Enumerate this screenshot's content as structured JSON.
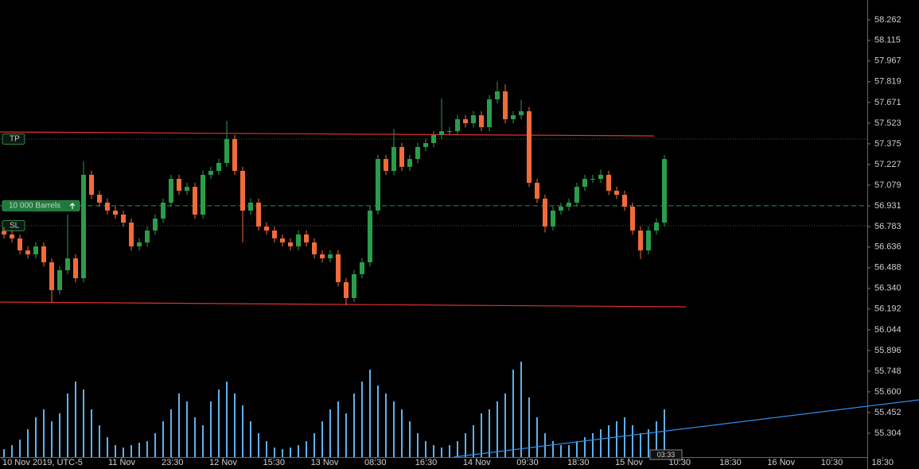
{
  "chart_data": {
    "type": "candlestick",
    "ylim": [
      55.133,
      58.404
    ],
    "yticks": [
      58.262,
      58.115,
      57.967,
      57.819,
      57.671,
      57.523,
      57.375,
      57.227,
      57.079,
      56.931,
      56.783,
      56.636,
      56.488,
      {
        "value": 56.34,
        "label": "56.340"
      },
      56.192,
      56.044,
      55.896,
      55.748,
      {
        "value": 55.6,
        "label": "55.600"
      },
      55.452,
      55.304
    ],
    "time_labels": [
      "10 Nov 2019, UTC-5",
      "11 Nov",
      "23:30",
      "12 Nov",
      "15:30",
      "13 Nov",
      "08:30",
      "16:30",
      "14 Nov",
      "09:30",
      "18:30",
      "15 Nov",
      "10:30",
      "18:30",
      "16 Nov",
      "10:30",
      "18:30"
    ],
    "up_color": "#2a9d4b",
    "down_color": "#f26b3a",
    "volume_color": "#5fb0ec",
    "open": [
      56.75,
      56.726,
      56.698,
      56.612,
      56.584,
      56.641,
      56.527,
      56.328,
      56.47,
      56.555,
      56.413,
      57.153,
      57.01,
      56.954,
      56.897,
      56.868,
      56.811,
      56.641,
      56.669,
      56.754,
      56.84,
      56.954,
      57.124,
      57.039,
      57.067,
      56.868,
      57.153,
      57.181,
      57.238,
      57.409,
      57.181,
      56.897,
      56.954,
      56.783,
      56.754,
      56.698,
      56.669,
      56.641,
      56.726,
      56.669,
      56.584,
      56.555,
      56.584,
      56.385,
      56.271,
      56.442,
      56.527,
      56.897,
      57.266,
      57.181,
      57.352,
      57.21,
      57.266,
      57.352,
      57.38,
      57.437,
      57.465,
      57.465,
      57.551,
      57.522,
      57.579,
      57.494,
      57.693,
      57.75,
      57.551,
      57.579,
      57.608,
      57.096,
      56.982,
      56.783,
      56.897,
      56.925,
      56.954,
      57.067,
      57.124,
      57.124,
      57.153,
      57.039,
      57.01,
      56.925,
      56.754,
      56.612,
      56.754,
      56.811
    ],
    "high": [
      56.78,
      56.756,
      56.728,
      56.642,
      56.671,
      56.671,
      56.557,
      56.5,
      56.87,
      56.585,
      57.25,
      57.183,
      57.04,
      56.984,
      56.927,
      56.898,
      56.841,
      56.699,
      56.784,
      56.87,
      56.984,
      57.154,
      57.154,
      57.097,
      57.097,
      57.183,
      57.211,
      57.268,
      57.54,
      57.439,
      57.211,
      56.984,
      56.984,
      56.813,
      56.784,
      56.728,
      56.699,
      56.756,
      56.756,
      56.699,
      56.614,
      56.614,
      56.614,
      56.415,
      56.472,
      56.557,
      56.927,
      57.296,
      57.296,
      57.48,
      57.382,
      57.296,
      57.382,
      57.41,
      57.467,
      57.7,
      57.495,
      57.581,
      57.581,
      57.609,
      57.609,
      57.723,
      57.82,
      57.8,
      57.609,
      57.69,
      57.638,
      57.126,
      57.012,
      56.927,
      56.955,
      56.984,
      57.097,
      57.154,
      57.154,
      57.19,
      57.183,
      57.069,
      57.04,
      56.955,
      56.784,
      56.784,
      56.841,
      57.296
    ],
    "low": [
      56.696,
      56.668,
      56.582,
      56.554,
      56.554,
      56.497,
      56.242,
      56.298,
      56.44,
      56.383,
      56.383,
      56.98,
      56.924,
      56.867,
      56.838,
      56.781,
      56.611,
      56.611,
      56.639,
      56.724,
      56.81,
      56.924,
      57.009,
      57.009,
      56.838,
      56.838,
      57.123,
      57.151,
      57.208,
      57.151,
      56.67,
      56.867,
      56.753,
      56.724,
      56.668,
      56.639,
      56.611,
      56.611,
      56.639,
      56.554,
      56.525,
      56.525,
      56.355,
      56.22,
      56.241,
      56.412,
      56.497,
      56.867,
      57.151,
      57.151,
      57.18,
      57.18,
      57.236,
      57.322,
      57.35,
      57.407,
      57.435,
      57.435,
      57.492,
      57.492,
      57.464,
      57.464,
      57.663,
      57.521,
      57.521,
      57.549,
      57.066,
      56.952,
      56.74,
      56.753,
      56.867,
      56.895,
      56.924,
      57.037,
      57.094,
      57.094,
      57.009,
      56.98,
      56.895,
      56.724,
      56.55,
      56.582,
      56.724,
      56.781
    ],
    "close": [
      56.726,
      56.698,
      56.612,
      56.584,
      56.641,
      56.527,
      56.328,
      56.47,
      56.555,
      56.413,
      57.153,
      57.01,
      56.954,
      56.897,
      56.868,
      56.811,
      56.641,
      56.669,
      56.754,
      56.84,
      56.954,
      57.124,
      57.039,
      57.067,
      56.868,
      57.153,
      57.181,
      57.238,
      57.409,
      57.181,
      56.897,
      56.954,
      56.783,
      56.754,
      56.698,
      56.669,
      56.641,
      56.726,
      56.669,
      56.584,
      56.555,
      56.584,
      56.385,
      56.271,
      56.442,
      56.527,
      56.897,
      57.266,
      57.181,
      57.352,
      57.21,
      57.266,
      57.352,
      57.38,
      57.437,
      57.465,
      57.465,
      57.551,
      57.522,
      57.579,
      57.494,
      57.693,
      57.75,
      57.551,
      57.579,
      57.608,
      57.096,
      56.982,
      56.783,
      56.897,
      56.925,
      56.954,
      57.067,
      57.124,
      57.124,
      57.153,
      57.039,
      57.01,
      56.925,
      56.754,
      56.612,
      56.754,
      56.811,
      57.266
    ],
    "volume": [
      10,
      15,
      22,
      35,
      50,
      60,
      45,
      55,
      80,
      95,
      85,
      60,
      40,
      25,
      15,
      12,
      15,
      18,
      20,
      30,
      45,
      60,
      80,
      70,
      50,
      40,
      70,
      85,
      95,
      80,
      65,
      45,
      30,
      20,
      12,
      10,
      12,
      15,
      20,
      30,
      45,
      60,
      70,
      55,
      80,
      95,
      110,
      90,
      80,
      70,
      60,
      45,
      30,
      20,
      15,
      12,
      15,
      20,
      30,
      40,
      55,
      60,
      70,
      80,
      110,
      120,
      75,
      50,
      30,
      20,
      15,
      15,
      20,
      25,
      30,
      35,
      40,
      45,
      50,
      40,
      30,
      35,
      45,
      60
    ],
    "orders": [
      {
        "label": "TP",
        "price": 57.409
      },
      {
        "label": "10 000 Barrels",
        "price": 56.931
      },
      {
        "label": "SL",
        "price": 56.789
      }
    ],
    "countdown": "03:33"
  }
}
